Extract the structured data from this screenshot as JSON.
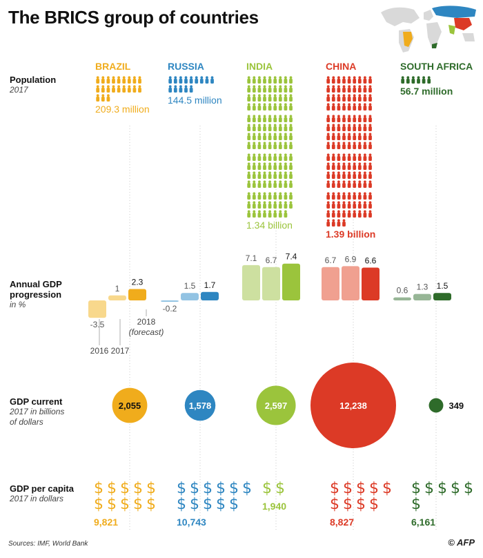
{
  "title": "The BRICS group of countries",
  "row_labels": {
    "population": {
      "main": "Population",
      "sub": "2017"
    },
    "gdp_growth": {
      "main": "Annual GDP progression",
      "sub": "in %"
    },
    "gdp_current": {
      "main": "GDP current",
      "sub": "2017 in billions of dollars"
    },
    "gdp_per_capita": {
      "main": "GDP per capita",
      "sub": "2017 in dollars"
    }
  },
  "sources": "Sources: IMF, World Bank",
  "credit": "© AFP",
  "chart_data": {
    "type": "bar",
    "countries": [
      "BRAZIL",
      "RUSSIA",
      "INDIA",
      "CHINA",
      "SOUTH AFRICA"
    ],
    "colors": [
      "#f0ac1c",
      "#2e86c1",
      "#9bc43c",
      "#dc3a26",
      "#2e6b2a"
    ],
    "light_colors": [
      "#f8d88c",
      "#92c3e3",
      "#cde0a0",
      "#f0a090",
      "#97b696"
    ],
    "population": {
      "labels": [
        "209.3 million",
        "144.5 million",
        "1.34 billion",
        "1.39 billion",
        "56.7 million"
      ],
      "values_million": [
        209.3,
        144.5,
        1340,
        1390,
        56.7
      ]
    },
    "gdp_growth": {
      "years": [
        "2016",
        "2017",
        "2018"
      ],
      "year_notes": [
        "",
        "",
        "(forecast)"
      ],
      "values": [
        [
          -3.5,
          1,
          2.3
        ],
        [
          -0.2,
          1.5,
          1.7
        ],
        [
          7.1,
          6.7,
          7.4
        ],
        [
          6.7,
          6.9,
          6.6
        ],
        [
          0.6,
          1.3,
          1.5
        ]
      ],
      "labels": [
        [
          "-3.5",
          "1",
          "2.3"
        ],
        [
          "-0.2",
          "1.5",
          "1.7"
        ],
        [
          "7.1",
          "6.7",
          "7.4"
        ],
        [
          "6.7",
          "6.9",
          "6.6"
        ],
        [
          "0.6",
          "1.3",
          "1.5"
        ]
      ]
    },
    "gdp_current": {
      "values": [
        2055,
        1578,
        2597,
        12238,
        349
      ],
      "labels": [
        "2,055",
        "1,578",
        "2,597",
        "12,238",
        "349"
      ]
    },
    "gdp_per_capita": {
      "values": [
        9821,
        10743,
        1940,
        8827,
        6161
      ],
      "labels": [
        "9,821",
        "10,743",
        "1,940",
        "8,827",
        "6,161"
      ]
    }
  }
}
